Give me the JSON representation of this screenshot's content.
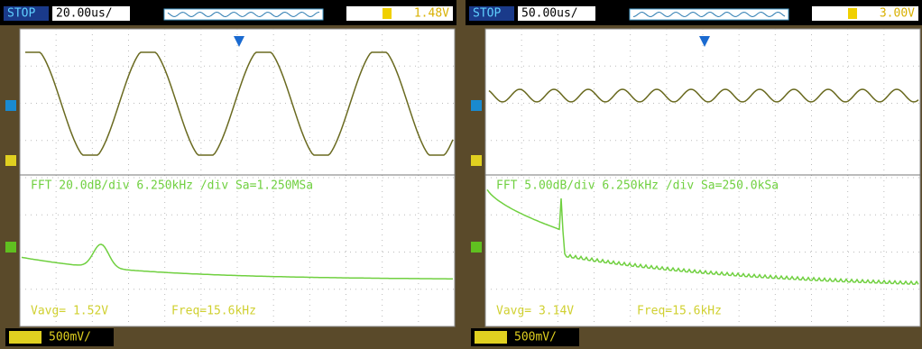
{
  "panels": [
    {
      "status": "STOP",
      "timebase": "20.00us/",
      "trigger_level": "1.48V",
      "fft_label": "FFT 20.0dB/div 6.250kHz /div Sa=1.250MSa",
      "vavg": "Vavg= 1.52V",
      "freq": "Freq=15.6kHz",
      "scale": "500mV/"
    },
    {
      "status": "STOP",
      "timebase": "50.00us/",
      "trigger_level": "3.00V",
      "fft_label": "FFT 5.00dB/div 6.250kHz /div Sa=250.0kSa",
      "vavg": "Vavg= 3.14V",
      "freq": "Freq=15.6kHz",
      "scale": "500mV/"
    }
  ]
}
